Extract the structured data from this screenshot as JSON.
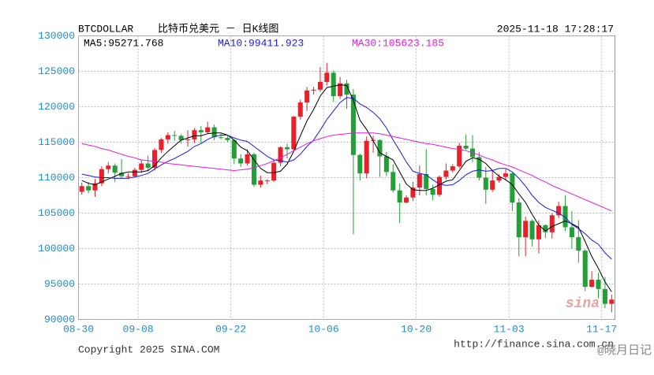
{
  "chart_data": {
    "type": "candlestick",
    "symbol": "BTCDOLLAR",
    "title": "比特币兑美元 － 日K线图",
    "timestamp": "2025-11-18 17:28:17",
    "copyright": "Copyright 2025 SINA.COM",
    "url": "http://finance.sina.com.cn",
    "watermark": "sina",
    "credit": "@晓月日记",
    "up_color": "#e8202a",
    "down_color": "#22a037",
    "grid": true,
    "ylim": [
      90000,
      130000
    ],
    "yticks": [
      90000,
      95000,
      100000,
      105000,
      110000,
      115000,
      120000,
      125000,
      130000
    ],
    "xticks": [
      "08-30",
      "09-08",
      "09-22",
      "10-06",
      "10-20",
      "11-03",
      "11-17"
    ],
    "x": [
      "08-30",
      "08-31",
      "09-01",
      "09-02",
      "09-03",
      "09-04",
      "09-05",
      "09-06",
      "09-07",
      "09-08",
      "09-09",
      "09-10",
      "09-11",
      "09-12",
      "09-13",
      "09-14",
      "09-15",
      "09-16",
      "09-17",
      "09-18",
      "09-19",
      "09-20",
      "09-21",
      "09-22",
      "09-23",
      "09-24",
      "09-25",
      "09-26",
      "09-27",
      "09-28",
      "09-29",
      "09-30",
      "10-01",
      "10-02",
      "10-03",
      "10-04",
      "10-05",
      "10-06",
      "10-07",
      "10-08",
      "10-09",
      "10-10",
      "10-11",
      "10-12",
      "10-13",
      "10-14",
      "10-15",
      "10-16",
      "10-17",
      "10-18",
      "10-19",
      "10-20",
      "10-21",
      "10-22",
      "10-23",
      "10-24",
      "10-25",
      "10-26",
      "10-27",
      "10-28",
      "10-29",
      "10-30",
      "10-31",
      "11-01",
      "11-02",
      "11-03",
      "11-04",
      "11-05",
      "11-06",
      "11-07",
      "11-08",
      "11-09",
      "11-10",
      "11-11",
      "11-12",
      "11-13",
      "11-14",
      "11-15",
      "11-16",
      "11-17",
      "11-18"
    ],
    "open": [
      108000,
      108800,
      108200,
      109200,
      111200,
      111700,
      110700,
      110200,
      110200,
      111100,
      112000,
      111400,
      113900,
      115400,
      116000,
      115900,
      115300,
      115400,
      116700,
      116400,
      117100,
      115700,
      115600,
      115300,
      112700,
      112000,
      113300,
      109000,
      109600,
      109600,
      112100,
      114300,
      114000,
      118600,
      120600,
      122300,
      122400,
      123500,
      124800,
      121500,
      123300,
      121700,
      113200,
      110600,
      115200,
      115300,
      113000,
      110800,
      108200,
      106500,
      107200,
      108600,
      110500,
      108400,
      107600,
      110100,
      111000,
      111600,
      114500,
      114100,
      112900,
      110000,
      108300,
      109600,
      110100,
      110600,
      106500,
      101600,
      103900,
      101300,
      103300,
      102300,
      104700,
      106000,
      103000,
      101600,
      99700,
      94600,
      95600,
      94300,
      92200
    ],
    "high": [
      109300,
      109400,
      109800,
      111600,
      112200,
      112000,
      112600,
      110600,
      111400,
      112500,
      113100,
      114200,
      115600,
      116400,
      116600,
      116100,
      116700,
      117000,
      117300,
      117900,
      117500,
      116200,
      115900,
      115400,
      113300,
      114000,
      113500,
      110300,
      109800,
      112400,
      114400,
      114800,
      118700,
      121000,
      122800,
      122800,
      125600,
      126200,
      125100,
      124200,
      123800,
      122500,
      113400,
      115800,
      115900,
      115400,
      113600,
      111900,
      109200,
      107500,
      109400,
      111700,
      114000,
      109000,
      110300,
      112000,
      111900,
      114900,
      116100,
      116000,
      113600,
      111500,
      111000,
      110500,
      111200,
      110700,
      107100,
      104500,
      104100,
      104000,
      103400,
      105000,
      106600,
      107500,
      105300,
      104000,
      99900,
      96800,
      96600,
      96000,
      93500
    ],
    "low": [
      107600,
      107800,
      107300,
      108800,
      110600,
      109400,
      109900,
      109800,
      110000,
      110700,
      110900,
      111000,
      113500,
      114800,
      115200,
      114800,
      114400,
      114900,
      114900,
      116200,
      115300,
      115400,
      115000,
      111900,
      111500,
      111700,
      108700,
      108600,
      109100,
      109400,
      111600,
      112700,
      113900,
      118200,
      119400,
      121700,
      122100,
      123000,
      120700,
      121100,
      119700,
      102000,
      109600,
      109900,
      113500,
      110100,
      110200,
      107900,
      103600,
      106400,
      106700,
      107500,
      107500,
      106800,
      107300,
      109700,
      110700,
      111300,
      113900,
      112200,
      109600,
      106300,
      108000,
      109300,
      109600,
      105300,
      98900,
      98900,
      100300,
      99300,
      101500,
      101400,
      104300,
      102500,
      100000,
      98000,
      94000,
      94500,
      93000,
      91600,
      91000
    ],
    "close": [
      108800,
      108200,
      109200,
      111200,
      111700,
      110700,
      110200,
      110200,
      111100,
      112000,
      111400,
      113900,
      115400,
      116000,
      115900,
      115300,
      115400,
      116700,
      116400,
      117100,
      115700,
      115600,
      115300,
      112700,
      112000,
      113300,
      109000,
      109600,
      109600,
      112100,
      114300,
      114000,
      118600,
      120600,
      122300,
      122400,
      123500,
      124800,
      121500,
      123300,
      121700,
      113200,
      110600,
      115200,
      115300,
      113000,
      110800,
      108200,
      106500,
      107200,
      108600,
      110500,
      108400,
      107600,
      110100,
      111000,
      111600,
      114500,
      114100,
      112900,
      110000,
      108300,
      109600,
      110100,
      110600,
      106500,
      101600,
      103900,
      101300,
      103300,
      102300,
      104700,
      106000,
      103000,
      101600,
      99700,
      94600,
      95600,
      94300,
      92200,
      92800
    ],
    "series": [
      {
        "name": "MA5:95271.768",
        "color": "#000000",
        "values": [
          109600,
          109200,
          109000,
          109400,
          109800,
          110200,
          110600,
          110800,
          110800,
          110800,
          111000,
          111700,
          112800,
          113700,
          114500,
          115300,
          115600,
          115900,
          115900,
          116200,
          116300,
          116300,
          116000,
          115300,
          114300,
          113800,
          112500,
          111300,
          110700,
          110700,
          110900,
          111900,
          113700,
          115900,
          118000,
          119600,
          121500,
          122700,
          122900,
          123100,
          123000,
          120900,
          118100,
          116800,
          115200,
          113500,
          113000,
          112500,
          110800,
          109100,
          108300,
          108200,
          108200,
          108500,
          109000,
          109500,
          109700,
          111000,
          112300,
          112800,
          112600,
          112000,
          111000,
          110200,
          109700,
          109000,
          107700,
          106500,
          104800,
          103300,
          102500,
          103100,
          103500,
          103900,
          103500,
          103000,
          101000,
          98900,
          97200,
          95300,
          93900
        ]
      },
      {
        "name": "MA10:99411.923",
        "color": "#1a1ae6",
        "values": [
          110500,
          110300,
          110100,
          110000,
          110000,
          109900,
          109900,
          109900,
          110100,
          110300,
          110600,
          111200,
          111800,
          112300,
          112700,
          113200,
          113700,
          114400,
          114800,
          115400,
          115800,
          116000,
          116000,
          115600,
          115300,
          115100,
          114400,
          113700,
          113000,
          112500,
          112400,
          112200,
          112500,
          113300,
          114400,
          115300,
          116700,
          118200,
          119400,
          120600,
          121300,
          121200,
          120400,
          119900,
          119200,
          118300,
          117000,
          115300,
          113800,
          112200,
          110900,
          110600,
          110400,
          109700,
          109100,
          108900,
          109000,
          109600,
          110400,
          110900,
          111100,
          110900,
          111000,
          111300,
          111300,
          110800,
          109900,
          108800,
          107500,
          106500,
          105800,
          105400,
          105000,
          104400,
          103400,
          102800,
          102100,
          101200,
          100600,
          99400,
          98500
        ]
      },
      {
        "name": "MA30:105623.185",
        "color": "#e619e6",
        "values": [
          114800,
          114600,
          114400,
          114100,
          113900,
          113600,
          113300,
          113000,
          112800,
          112500,
          112400,
          112300,
          112200,
          112000,
          111900,
          111800,
          111700,
          111600,
          111500,
          111400,
          111300,
          111200,
          111100,
          111000,
          111100,
          111200,
          111400,
          111700,
          112000,
          112400,
          112800,
          113300,
          113800,
          114300,
          114800,
          115200,
          115500,
          115800,
          116000,
          116100,
          116200,
          116300,
          116300,
          116300,
          116300,
          116200,
          116000,
          115800,
          115600,
          115400,
          115200,
          115000,
          114800,
          114700,
          114500,
          114300,
          114100,
          114000,
          113800,
          113500,
          113200,
          112800,
          112500,
          112100,
          111800,
          111500,
          111100,
          110700,
          110300,
          109800,
          109400,
          108900,
          108500,
          108100,
          107700,
          107300,
          106900,
          106500,
          106100,
          105700,
          105300
        ]
      }
    ]
  }
}
